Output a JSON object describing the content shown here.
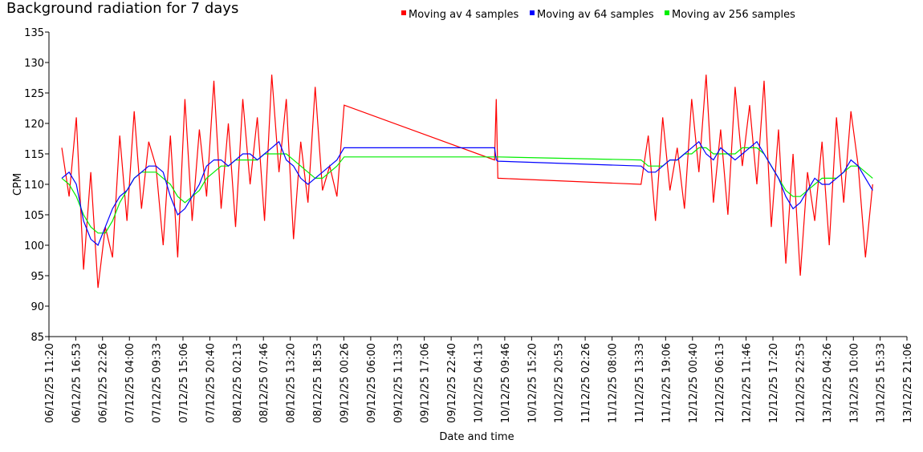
{
  "chart_data": {
    "type": "line",
    "title": "Background radiation for 7 days",
    "x_label": "Date and time",
    "y_label": "CPM",
    "x": [
      "06/12/25 14:00",
      "06/12/25 15:30",
      "06/12/25 17:00",
      "06/12/25 18:30",
      "06/12/25 20:00",
      "06/12/25 21:30",
      "06/12/25 23:00",
      "07/12/25 00:30",
      "07/12/25 02:00",
      "07/12/25 03:30",
      "07/12/25 05:00",
      "07/12/25 06:30",
      "07/12/25 08:00",
      "07/12/25 09:30",
      "07/12/25 11:00",
      "07/12/25 12:30",
      "07/12/25 14:00",
      "07/12/25 15:30",
      "07/12/25 17:00",
      "07/12/25 18:30",
      "07/12/25 20:00",
      "07/12/25 21:30",
      "07/12/25 23:00",
      "08/12/25 00:30",
      "08/12/25 02:00",
      "08/12/25 03:30",
      "08/12/25 05:00",
      "08/12/25 06:30",
      "08/12/25 08:00",
      "08/12/25 09:30",
      "08/12/25 11:00",
      "08/12/25 12:30",
      "08/12/25 14:00",
      "08/12/25 15:30",
      "08/12/25 17:00",
      "08/12/25 18:30",
      "08/12/25 20:00",
      "08/12/25 21:30",
      "08/12/25 23:00",
      "09/12/25 00:30",
      "10/12/25 07:40",
      "10/12/25 08:00",
      "10/12/25 08:20",
      "11/12/25 14:00",
      "11/12/25 15:30",
      "11/12/25 17:00",
      "11/12/25 18:30",
      "11/12/25 20:00",
      "11/12/25 21:30",
      "11/12/25 23:00",
      "12/12/25 00:30",
      "12/12/25 02:00",
      "12/12/25 03:30",
      "12/12/25 05:00",
      "12/12/25 06:30",
      "12/12/25 08:00",
      "12/12/25 09:30",
      "12/12/25 11:00",
      "12/12/25 12:30",
      "12/12/25 14:00",
      "12/12/25 15:30",
      "12/12/25 17:00",
      "12/12/25 18:30",
      "12/12/25 20:00",
      "12/12/25 21:30",
      "12/12/25 23:00",
      "13/12/25 00:30",
      "13/12/25 02:00",
      "13/12/25 03:30",
      "13/12/25 05:00",
      "13/12/25 06:30",
      "13/12/25 08:00",
      "13/12/25 09:30",
      "13/12/25 11:00",
      "13/12/25 12:30",
      "13/12/25 14:00"
    ],
    "series": [
      {
        "name": "Moving av 4 samples",
        "color": "#ff0000",
        "values": [
          116,
          108,
          121,
          96,
          112,
          93,
          103,
          98,
          118,
          104,
          122,
          106,
          117,
          113,
          100,
          118,
          98,
          124,
          104,
          119,
          108,
          127,
          106,
          120,
          103,
          124,
          110,
          121,
          104,
          128,
          112,
          124,
          101,
          117,
          107,
          126,
          109,
          113,
          108,
          123,
          114,
          124,
          111,
          110,
          118,
          104,
          121,
          109,
          116,
          106,
          124,
          112,
          128,
          107,
          119,
          105,
          126,
          113,
          123,
          110,
          127,
          103,
          119,
          97,
          115,
          95,
          112,
          104,
          117,
          100,
          121,
          107,
          122,
          113,
          98,
          110
        ]
      },
      {
        "name": "Moving av 64 samples",
        "color": "#0000ff",
        "values": [
          111,
          112,
          110,
          104,
          101,
          100,
          103,
          106,
          108,
          109,
          111,
          112,
          113,
          113,
          112,
          108,
          105,
          106,
          108,
          110,
          113,
          114,
          114,
          113,
          114,
          115,
          115,
          114,
          115,
          116,
          117,
          114,
          113,
          111,
          110,
          111,
          112,
          113,
          114,
          116,
          116,
          114,
          113.8,
          113,
          112,
          112,
          113,
          114,
          114,
          115,
          116,
          117,
          115,
          114,
          116,
          115,
          114,
          115,
          116,
          117,
          115,
          113,
          111,
          108,
          106,
          107,
          109,
          111,
          110,
          110,
          111,
          112,
          114,
          113,
          111,
          109
        ]
      },
      {
        "name": "Moving av 256 samples",
        "color": "#00ee00",
        "values": [
          111,
          110,
          108,
          105,
          103,
          102,
          102,
          104,
          107,
          109,
          111,
          112,
          112,
          112,
          111,
          110,
          108,
          107,
          108,
          109,
          111,
          112,
          113,
          113,
          114,
          114,
          114,
          114,
          115,
          115,
          115,
          115,
          114,
          113,
          112,
          111,
          111,
          112,
          113,
          114.5,
          114.5,
          114.5,
          114.5,
          114,
          113,
          113,
          113,
          114,
          114,
          115,
          115,
          116,
          116,
          115,
          115,
          115,
          115,
          116,
          116,
          116,
          115,
          113,
          111,
          109,
          108,
          108,
          109,
          110,
          111,
          111,
          111,
          112,
          113,
          113,
          112,
          111
        ]
      }
    ],
    "xlim": [
      "06/12/25 11:20",
      "13/12/25 21:06"
    ],
    "xticks": [
      "06/12/25 11:20",
      "06/12/25 16:53",
      "06/12/25 22:26",
      "07/12/25 04:00",
      "07/12/25 09:33",
      "07/12/25 15:06",
      "07/12/25 20:40",
      "08/12/25 02:13",
      "08/12/25 07:46",
      "08/12/25 13:20",
      "08/12/25 18:53",
      "09/12/25 00:26",
      "09/12/25 06:00",
      "09/12/25 11:33",
      "09/12/25 17:06",
      "09/12/25 22:40",
      "10/12/25 04:13",
      "10/12/25 09:46",
      "10/12/25 15:20",
      "10/12/25 20:53",
      "11/12/25 02:26",
      "11/12/25 08:00",
      "11/12/25 13:33",
      "11/12/25 19:06",
      "12/12/25 00:40",
      "12/12/25 06:13",
      "12/12/25 11:46",
      "12/12/25 17:20",
      "12/12/25 22:53",
      "13/12/25 04:26",
      "13/12/25 10:00",
      "13/12/25 15:33",
      "13/12/25 21:06"
    ],
    "ylim": [
      85,
      135
    ],
    "yticks": [
      85,
      90,
      95,
      100,
      105,
      110,
      115,
      120,
      125,
      130,
      135
    ]
  }
}
